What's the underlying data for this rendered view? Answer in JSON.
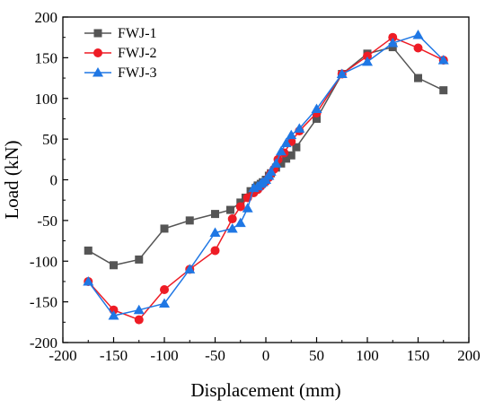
{
  "chart_data": {
    "type": "line",
    "xlabel": "Displacement (mm)",
    "ylabel": "Load (kN)",
    "xlim": [
      -200,
      200
    ],
    "ylim": [
      -200,
      200
    ],
    "xticks": [
      -200,
      -150,
      -100,
      -50,
      0,
      50,
      100,
      150,
      200
    ],
    "yticks": [
      -200,
      -150,
      -100,
      -50,
      0,
      50,
      100,
      150,
      200
    ],
    "grid": false,
    "legend_position": "top-left",
    "series": [
      {
        "name": "FWJ-1",
        "color": "#555555",
        "marker": "square",
        "x": [
          -175,
          -150,
          -125,
          -100,
          -75,
          -50,
          -35,
          -25,
          -20,
          -15,
          -10,
          -8,
          -5,
          -3,
          0,
          3,
          5,
          10,
          15,
          20,
          25,
          30,
          50,
          75,
          100,
          125,
          150,
          175
        ],
        "y": [
          -87,
          -105,
          -98,
          -60,
          -50,
          -42,
          -37,
          -28,
          -22,
          -14,
          -10,
          -7,
          -5,
          -3,
          0,
          5,
          8,
          15,
          20,
          26,
          30,
          40,
          75,
          130,
          155,
          163,
          125,
          110
        ]
      },
      {
        "name": "FWJ-2",
        "color": "#ee1c25",
        "marker": "circle",
        "x": [
          -175,
          -150,
          -125,
          -100,
          -75,
          -50,
          -33,
          -25,
          -18,
          -12,
          -8,
          -5,
          -3,
          0,
          3,
          5,
          8,
          12,
          18,
          25,
          33,
          50,
          75,
          100,
          125,
          150,
          175
        ],
        "y": [
          -125,
          -160,
          -172,
          -135,
          -110,
          -87,
          -48,
          -33,
          -22,
          -16,
          -12,
          -8,
          -5,
          -2,
          3,
          8,
          13,
          25,
          33,
          47,
          60,
          82,
          130,
          152,
          175,
          162,
          147
        ]
      },
      {
        "name": "FWJ-3",
        "color": "#1f77e4",
        "marker": "triangle",
        "x": [
          -175,
          -150,
          -125,
          -100,
          -75,
          -50,
          -33,
          -25,
          -18,
          -12,
          -8,
          -5,
          -3,
          0,
          3,
          5,
          10,
          15,
          20,
          25,
          33,
          50,
          75,
          100,
          125,
          150,
          175
        ],
        "y": [
          -125,
          -167,
          -160,
          -152,
          -110,
          -65,
          -60,
          -53,
          -35,
          -10,
          -8,
          -5,
          -3,
          0,
          5,
          10,
          20,
          35,
          45,
          55,
          63,
          87,
          130,
          145,
          168,
          178,
          147
        ]
      }
    ]
  }
}
